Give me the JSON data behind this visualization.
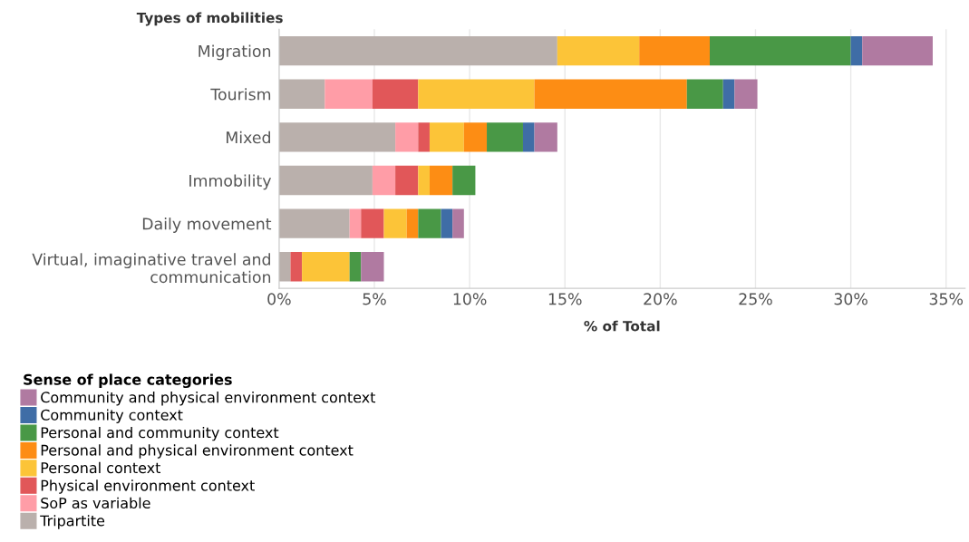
{
  "chart_data": {
    "type": "bar",
    "orientation": "horizontal",
    "stacked": true,
    "ylabel": "Types of mobilities",
    "xlabel": "% of Total",
    "legend_title": "Sense of place categories",
    "categories": [
      "Migration",
      "Tourism",
      "Mixed",
      "Immobility",
      "Daily movement",
      "Virtual, imaginative travel and\ncommunication"
    ],
    "series": [
      {
        "name": "Tripartite",
        "color": "#bab0ac",
        "values": [
          14.6,
          2.4,
          6.1,
          4.9,
          3.7,
          0.6
        ]
      },
      {
        "name": "SoP as variable",
        "color": "#ff9da7",
        "values": [
          0,
          2.5,
          1.2,
          1.2,
          0.6,
          0
        ]
      },
      {
        "name": "Physical environment context",
        "color": "#e15759",
        "values": [
          0,
          2.4,
          0.6,
          1.2,
          1.2,
          0.6
        ]
      },
      {
        "name": "Personal context",
        "color": "#fcc438",
        "values": [
          4.3,
          6.1,
          1.8,
          0.6,
          1.2,
          2.5
        ]
      },
      {
        "name": "Personal and physical environment context",
        "color": "#fd8d14",
        "values": [
          3.7,
          8.0,
          1.2,
          1.2,
          0.6,
          0
        ]
      },
      {
        "name": "Personal and community context",
        "color": "#499846",
        "values": [
          7.4,
          1.9,
          1.9,
          1.2,
          1.2,
          0.6
        ]
      },
      {
        "name": "Community context",
        "color": "#3f6da6",
        "values": [
          0.6,
          0.6,
          0.6,
          0,
          0.6,
          0
        ]
      },
      {
        "name": "Community and physical environment context",
        "color": "#b07aa1",
        "values": [
          3.7,
          1.2,
          1.2,
          0,
          0.6,
          1.2
        ]
      }
    ],
    "xlim": [
      0,
      36
    ],
    "xticks": [
      {
        "value": 0,
        "label": "0%"
      },
      {
        "value": 5,
        "label": "5%"
      },
      {
        "value": 10,
        "label": "10%"
      },
      {
        "value": 15,
        "label": "15%"
      },
      {
        "value": 20,
        "label": "20%"
      },
      {
        "value": 25,
        "label": "25%"
      },
      {
        "value": 30,
        "label": "30%"
      },
      {
        "value": 35,
        "label": "35%"
      }
    ],
    "grid": "x",
    "legend": "bottom left"
  }
}
